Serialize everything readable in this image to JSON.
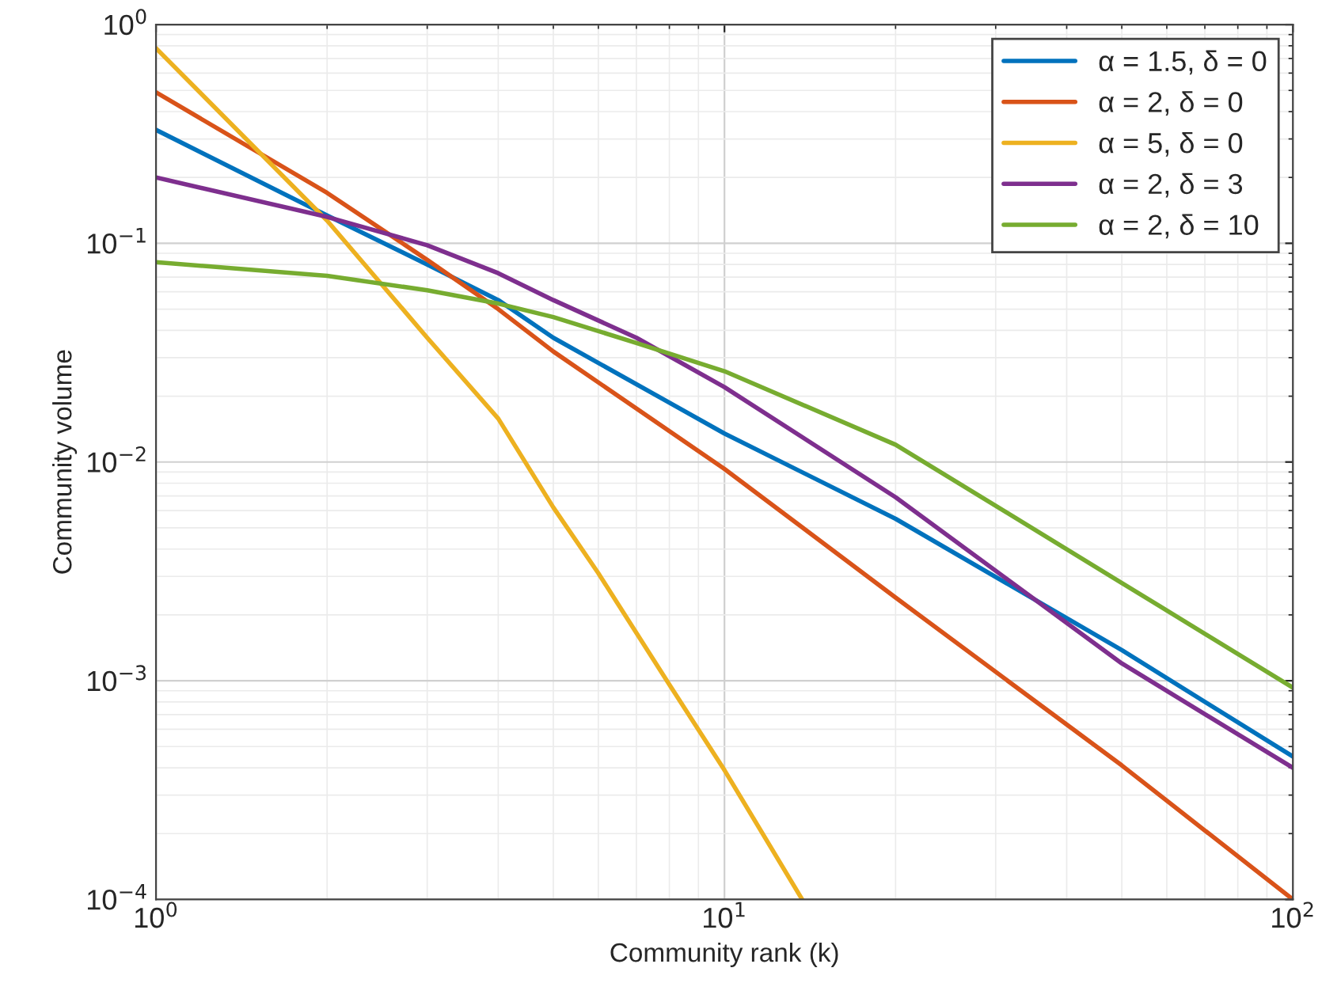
{
  "chart_data": {
    "type": "line",
    "xlabel": "Community rank (k)",
    "ylabel": "Community volume",
    "log": "xy",
    "grid": true,
    "legend": "top right",
    "line_style": "solid",
    "xlim": [
      1,
      100
    ],
    "xticks": [
      {
        "value": 1,
        "label": "10$^{0}$"
      },
      {
        "value": 10,
        "label": "10$^{1}$"
      },
      {
        "value": 100,
        "label": "10$^{2}$"
      }
    ],
    "ylim": [
      0.0001,
      1
    ],
    "yticks": [
      {
        "value": 0.0001,
        "label": "10$^{−4}$"
      },
      {
        "value": 0.001,
        "label": "10$^{−3}$"
      },
      {
        "value": 0.01,
        "label": "10$^{−2}$"
      },
      {
        "value": 0.1,
        "label": "10$^{−1}$"
      },
      {
        "value": 1,
        "label": "10$^{0}$"
      }
    ],
    "series": [
      {
        "name": "α = 1.5, δ = 0",
        "color": "#0072bd",
        "x": [
          1,
          2,
          3,
          4,
          5,
          10,
          20,
          50,
          100
        ],
        "values": [
          0.33,
          0.134,
          0.08,
          0.055,
          0.037,
          0.0135,
          0.0055,
          0.00138,
          0.00045
        ]
      },
      {
        "name": "α = 2, δ = 0",
        "color": "#d95319",
        "x": [
          1,
          2,
          3,
          4,
          5,
          10,
          20,
          50,
          100
        ],
        "values": [
          0.49,
          0.17,
          0.084,
          0.05,
          0.032,
          0.0093,
          0.0024,
          0.00041,
          0.0001
        ]
      },
      {
        "name": "α = 5, δ = 0",
        "color": "#edb120",
        "x": [
          1,
          2,
          3,
          4,
          5,
          6,
          8,
          10,
          13.7
        ],
        "values": [
          0.78,
          0.127,
          0.037,
          0.0158,
          0.0062,
          0.0031,
          0.00096,
          0.00039,
          0.0001
        ]
      },
      {
        "name": "α = 2, δ = 3",
        "color": "#7e2f8e",
        "x": [
          1,
          2,
          3,
          4,
          5,
          7,
          10,
          20,
          50,
          100
        ],
        "values": [
          0.2,
          0.132,
          0.098,
          0.073,
          0.055,
          0.037,
          0.022,
          0.0069,
          0.0012,
          0.0004
        ]
      },
      {
        "name": "α = 2, δ = 10",
        "color": "#77ac30",
        "x": [
          1,
          2,
          3,
          4,
          5,
          7,
          10,
          20,
          50,
          100
        ],
        "values": [
          0.082,
          0.071,
          0.061,
          0.053,
          0.046,
          0.035,
          0.026,
          0.012,
          0.0028,
          0.00093
        ]
      }
    ]
  }
}
